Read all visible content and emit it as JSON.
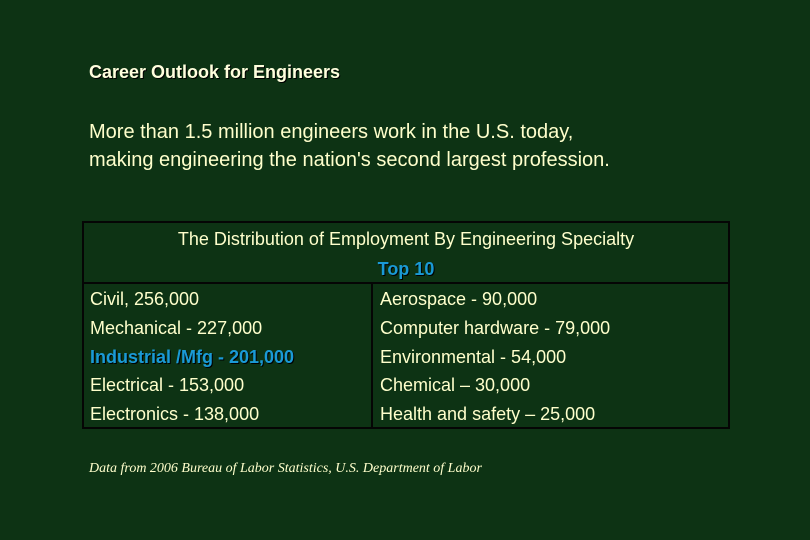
{
  "slide": {
    "title": "Career Outlook for Engineers",
    "intro_line1": "More than 1.5 million engineers work in the U.S. today,",
    "intro_line2": "making engineering the nation's second largest profession."
  },
  "table": {
    "header_line1": "The Distribution of Employment By Engineering Specialty",
    "header_line2": "Top 10",
    "left_column": [
      "Civil, 256,000",
      "Mechanical - 227,000",
      "Industrial /Mfg - 201,000",
      "Electrical - 153,000",
      "Electronics - 138,000"
    ],
    "right_column": [
      "Aerospace - 90,000",
      "Computer hardware - 79,000",
      "Environmental - 54,000",
      "Chemical – 30,000",
      "Health and safety – 25,000"
    ]
  },
  "source": "Data from 2006 Bureau of Labor Statistics, U.S. Department of Labor",
  "colors": {
    "background": "#0d3314",
    "text": "#ffffcc",
    "highlight": "#1a9ad6",
    "border": "#050505"
  }
}
